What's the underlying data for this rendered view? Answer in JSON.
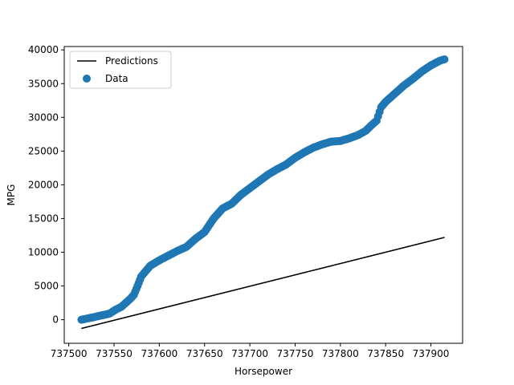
{
  "chart_data": {
    "type": "scatter",
    "title": "",
    "xlabel": "Horsepower",
    "ylabel": "MPG",
    "xlim": [
      737495,
      737935
    ],
    "ylim": [
      -3500,
      40500
    ],
    "x_ticks": [
      737500,
      737550,
      737600,
      737650,
      737700,
      737750,
      737800,
      737850,
      737900
    ],
    "x_tick_labels": [
      "737500",
      "737550",
      "737600",
      "737650",
      "737700",
      "737750",
      "737800",
      "737850",
      "737900"
    ],
    "y_ticks": [
      0,
      5000,
      10000,
      15000,
      20000,
      25000,
      30000,
      35000,
      40000
    ],
    "y_tick_labels": [
      "0",
      "5000",
      "10000",
      "15000",
      "20000",
      "25000",
      "30000",
      "35000",
      "40000"
    ],
    "legend": {
      "position": "upper-left",
      "entries": [
        "Predictions",
        "Data"
      ]
    },
    "series": [
      {
        "name": "Predictions",
        "kind": "line",
        "color": "#000000",
        "x": [
          737514,
          737915
        ],
        "y": [
          -1300,
          12200
        ]
      },
      {
        "name": "Data",
        "kind": "scatter",
        "color": "#1f77b4",
        "x": [
          737514,
          737525,
          737535,
          737545,
          737552,
          737558,
          737563,
          737568,
          737572,
          737576,
          737580,
          737585,
          737590,
          737600,
          737610,
          737620,
          737630,
          737640,
          737650,
          737660,
          737670,
          737680,
          737690,
          737700,
          737710,
          737720,
          737730,
          737740,
          737750,
          737760,
          737770,
          737780,
          737790,
          737800,
          737810,
          737820,
          737828,
          737834,
          737840,
          737845,
          737850,
          737860,
          737870,
          737880,
          737890,
          737900,
          737910,
          737915
        ],
        "y": [
          0,
          300,
          600,
          900,
          1500,
          1900,
          2500,
          3100,
          3700,
          5000,
          6400,
          7200,
          8000,
          8800,
          9500,
          10200,
          10800,
          12000,
          13000,
          15000,
          16500,
          17200,
          18500,
          19500,
          20500,
          21500,
          22300,
          23000,
          24000,
          24800,
          25500,
          26000,
          26400,
          26500,
          26900,
          27400,
          28000,
          28800,
          29500,
          31500,
          32300,
          33500,
          34700,
          35700,
          36800,
          37700,
          38400,
          38600
        ]
      }
    ]
  }
}
